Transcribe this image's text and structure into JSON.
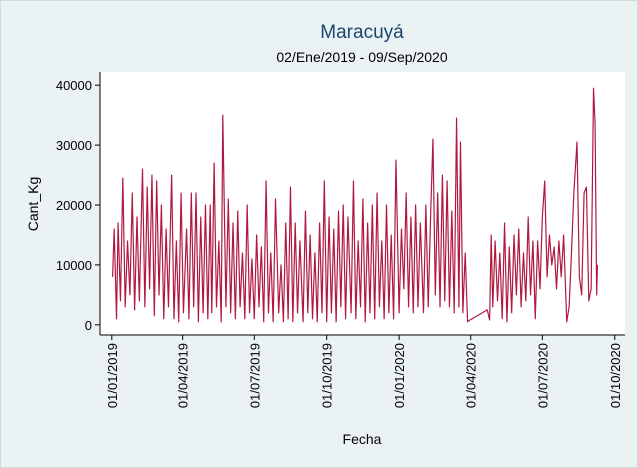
{
  "chart_data": {
    "type": "line",
    "title": "Maracuyá",
    "subtitle": "02/Ene/2019 - 09/Sep/2020",
    "x_label": "Fecha",
    "y_label": "Cant_Kg",
    "color": "#b0183f",
    "xlim": [
      "2018-12-17",
      "2020-10-14"
    ],
    "xticks": [
      {
        "value": "2019-01-01",
        "label": "01/01/2019"
      },
      {
        "value": "2019-04-01",
        "label": "01/04/2019"
      },
      {
        "value": "2019-07-01",
        "label": "01/07/2019"
      },
      {
        "value": "2019-10-01",
        "label": "01/10/2019"
      },
      {
        "value": "2020-01-01",
        "label": "01/01/2020"
      },
      {
        "value": "2020-04-01",
        "label": "01/04/2020"
      },
      {
        "value": "2020-07-01",
        "label": "01/07/2020"
      },
      {
        "value": "2020-10-01",
        "label": "01/10/2020"
      }
    ],
    "ylim": [
      -1700,
      42200
    ],
    "yticks": [
      0,
      10000,
      20000,
      30000,
      40000
    ],
    "grid": false,
    "x": [
      "2019-01-02",
      "2019-01-04",
      "2019-01-07",
      "2019-01-09",
      "2019-01-12",
      "2019-01-15",
      "2019-01-18",
      "2019-01-21",
      "2019-01-24",
      "2019-01-27",
      "2019-01-30",
      "2019-02-02",
      "2019-02-05",
      "2019-02-09",
      "2019-02-12",
      "2019-02-15",
      "2019-02-18",
      "2019-02-21",
      "2019-02-24",
      "2019-02-27",
      "2019-03-02",
      "2019-03-05",
      "2019-03-08",
      "2019-03-11",
      "2019-03-14",
      "2019-03-18",
      "2019-03-21",
      "2019-03-24",
      "2019-03-27",
      "2019-03-30",
      "2019-04-02",
      "2019-04-06",
      "2019-04-09",
      "2019-04-12",
      "2019-04-15",
      "2019-04-18",
      "2019-04-21",
      "2019-04-24",
      "2019-04-27",
      "2019-04-30",
      "2019-05-03",
      "2019-05-06",
      "2019-05-08",
      "2019-05-11",
      "2019-05-14",
      "2019-05-17",
      "2019-05-20",
      "2019-05-22",
      "2019-05-26",
      "2019-05-29",
      "2019-06-01",
      "2019-06-04",
      "2019-06-07",
      "2019-06-10",
      "2019-06-13",
      "2019-06-16",
      "2019-06-19",
      "2019-06-22",
      "2019-06-25",
      "2019-06-28",
      "2019-07-01",
      "2019-07-04",
      "2019-07-07",
      "2019-07-10",
      "2019-07-13",
      "2019-07-16",
      "2019-07-19",
      "2019-07-22",
      "2019-07-25",
      "2019-07-28",
      "2019-08-01",
      "2019-08-04",
      "2019-08-07",
      "2019-08-10",
      "2019-08-13",
      "2019-08-16",
      "2019-08-19",
      "2019-08-22",
      "2019-08-25",
      "2019-08-28",
      "2019-09-01",
      "2019-09-04",
      "2019-09-07",
      "2019-09-10",
      "2019-09-13",
      "2019-09-16",
      "2019-09-19",
      "2019-09-22",
      "2019-09-25",
      "2019-09-28",
      "2019-10-01",
      "2019-10-04",
      "2019-10-07",
      "2019-10-10",
      "2019-10-13",
      "2019-10-16",
      "2019-10-19",
      "2019-10-22",
      "2019-10-25",
      "2019-10-28",
      "2019-11-01",
      "2019-11-04",
      "2019-11-07",
      "2019-11-10",
      "2019-11-13",
      "2019-11-16",
      "2019-11-19",
      "2019-11-22",
      "2019-11-25",
      "2019-11-28",
      "2019-12-01",
      "2019-12-04",
      "2019-12-07",
      "2019-12-10",
      "2019-12-13",
      "2019-12-16",
      "2019-12-19",
      "2019-12-22",
      "2019-12-25",
      "2019-12-28",
      "2020-01-01",
      "2020-01-04",
      "2020-01-07",
      "2020-01-10",
      "2020-01-13",
      "2020-01-16",
      "2020-01-19",
      "2020-01-22",
      "2020-01-25",
      "2020-01-28",
      "2020-02-01",
      "2020-02-04",
      "2020-02-07",
      "2020-02-10",
      "2020-02-13",
      "2020-02-16",
      "2020-02-19",
      "2020-02-22",
      "2020-02-25",
      "2020-02-28",
      "2020-03-02",
      "2020-03-05",
      "2020-03-08",
      "2020-03-11",
      "2020-03-14",
      "2020-03-17",
      "2020-03-19",
      "2020-03-22",
      "2020-03-25",
      "2020-03-28",
      "2020-03-31",
      "2020-04-22",
      "2020-04-25",
      "2020-04-27",
      "2020-04-29",
      "2020-05-02",
      "2020-05-05",
      "2020-05-08",
      "2020-05-11",
      "2020-05-14",
      "2020-05-17",
      "2020-05-20",
      "2020-05-23",
      "2020-05-26",
      "2020-05-29",
      "2020-06-01",
      "2020-06-04",
      "2020-06-07",
      "2020-06-10",
      "2020-06-13",
      "2020-06-16",
      "2020-06-19",
      "2020-06-22",
      "2020-06-25",
      "2020-06-28",
      "2020-07-01",
      "2020-07-04",
      "2020-07-07",
      "2020-07-10",
      "2020-07-13",
      "2020-07-16",
      "2020-07-19",
      "2020-07-22",
      "2020-07-25",
      "2020-07-28",
      "2020-08-01",
      "2020-08-04",
      "2020-08-07",
      "2020-08-10",
      "2020-08-14",
      "2020-08-17",
      "2020-08-20",
      "2020-08-23",
      "2020-08-26",
      "2020-08-29",
      "2020-09-01",
      "2020-09-04",
      "2020-09-06",
      "2020-09-08",
      "2020-09-09"
    ],
    "values": [
      8000,
      16000,
      1000,
      17000,
      4000,
      24500,
      3000,
      14000,
      5000,
      22000,
      2500,
      18000,
      4000,
      26000,
      3000,
      23000,
      6000,
      25000,
      1500,
      24000,
      5000,
      20000,
      1000,
      16000,
      3000,
      25000,
      1000,
      14000,
      500,
      22000,
      2000,
      16000,
      1000,
      22000,
      3000,
      22000,
      500,
      18000,
      2000,
      20000,
      1000,
      20000,
      2000,
      27000,
      3000,
      14000,
      500,
      35000,
      3000,
      21000,
      2000,
      17000,
      1000,
      19000,
      3000,
      12000,
      1000,
      20000,
      2000,
      11000,
      1000,
      15000,
      3000,
      13000,
      500,
      24000,
      2000,
      12000,
      500,
      21000,
      2000,
      10000,
      500,
      17000,
      1000,
      23000,
      500,
      17000,
      2000,
      14000,
      500,
      19000,
      2000,
      15000,
      1000,
      12000,
      500,
      17000,
      2000,
      24000,
      500,
      18000,
      2000,
      16000,
      500,
      19000,
      3000,
      20000,
      1000,
      18000,
      2000,
      24000,
      1000,
      14000,
      3000,
      21000,
      500,
      17000,
      2000,
      20000,
      1000,
      22000,
      3000,
      14000,
      1000,
      20000,
      2000,
      15000,
      1000,
      27500,
      2000,
      16000,
      6000,
      22000,
      3000,
      18000,
      2000,
      20000,
      3000,
      17000,
      2000,
      20000,
      3000,
      18000,
      31000,
      5000,
      22000,
      3000,
      25000,
      4000,
      24000,
      3000,
      19000,
      2000,
      34500,
      3000,
      30500,
      2000,
      12000,
      500,
      800,
      2500,
      800,
      15000,
      3000,
      14000,
      4000,
      12000,
      1000,
      17000,
      500,
      13000,
      2000,
      15000,
      5000,
      16000,
      3000,
      12000,
      4000,
      18000,
      5000,
      14000,
      1000,
      14000,
      6000,
      18000,
      24000,
      8000,
      15000,
      10000,
      13000,
      6000,
      14000,
      8000,
      15000,
      500,
      3000,
      12000,
      22000,
      30500,
      8000,
      5000,
      22000,
      23000,
      4000,
      6000,
      39500,
      33500,
      5000,
      10000
    ]
  }
}
